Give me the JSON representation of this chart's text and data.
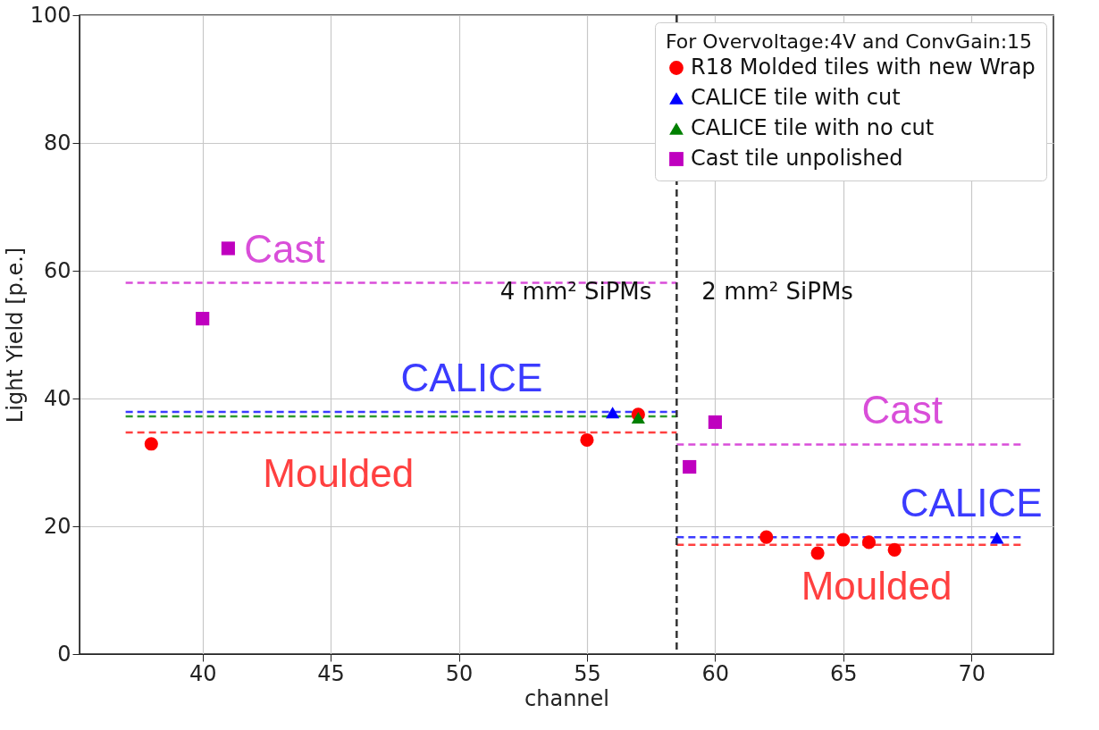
{
  "chart_data": {
    "type": "scatter",
    "xlabel": "channel",
    "ylabel": "Light Yield [p.e.]",
    "legend_title": "For Overvoltage:4V and ConvGain:15",
    "legend": "top right",
    "grid": true,
    "xlim": [
      35.2,
      73.2
    ],
    "ylim": [
      0,
      100
    ],
    "xticks": [
      40,
      45,
      50,
      55,
      60,
      65,
      70
    ],
    "yticks": [
      0,
      20,
      40,
      60,
      80,
      100
    ],
    "series": [
      {
        "name": "R18 Molded tiles with new Wrap",
        "marker": "circle",
        "color": "#ff0000",
        "x": [
          38,
          55,
          57,
          62,
          64,
          65,
          66,
          67
        ],
        "values": [
          32.9,
          33.5,
          37.5,
          18.3,
          15.8,
          17.9,
          17.5,
          16.3
        ]
      },
      {
        "name": "CALICE tile with cut",
        "marker": "triangle",
        "color": "#0000ff",
        "x": [
          56,
          71
        ],
        "values": [
          37.8,
          18.2
        ]
      },
      {
        "name": "CALICE tile with no cut",
        "marker": "triangle",
        "color": "#008000",
        "x": [
          57
        ],
        "values": [
          37.0
        ]
      },
      {
        "name": "Cast tile unpolished",
        "marker": "square",
        "color": "#bf00bf",
        "x": [
          40,
          41,
          59,
          60
        ],
        "values": [
          52.5,
          63.5,
          29.3,
          36.3
        ]
      },
      {
        "type": "line",
        "line_style": "dashed",
        "color": "#d94ed9",
        "x": [
          37,
          58.5
        ],
        "values": [
          58.1,
          58.1
        ]
      },
      {
        "type": "line",
        "line_style": "dashed",
        "color": "#3b3bff",
        "x": [
          37,
          58.5
        ],
        "values": [
          37.9,
          37.9
        ]
      },
      {
        "type": "line",
        "line_style": "dashed",
        "color": "#2e9a2e",
        "x": [
          37,
          58.5
        ],
        "values": [
          37.2,
          37.2
        ]
      },
      {
        "type": "line",
        "line_style": "dashed",
        "color": "#ff4040",
        "x": [
          37,
          58.5
        ],
        "values": [
          34.7,
          34.7
        ]
      },
      {
        "type": "line",
        "line_style": "dashed",
        "color": "#d94ed9",
        "x": [
          58.5,
          72
        ],
        "values": [
          32.8,
          32.8
        ]
      },
      {
        "type": "line",
        "line_style": "dashed",
        "color": "#3b3bff",
        "x": [
          58.5,
          72
        ],
        "values": [
          18.3,
          18.3
        ]
      },
      {
        "type": "line",
        "line_style": "dashed",
        "color": "#ff4040",
        "x": [
          58.5,
          72
        ],
        "values": [
          17.1,
          17.1
        ]
      }
    ],
    "ref_lines": [
      {
        "axis": "x",
        "value": 58.5,
        "color": "#333333",
        "line_style": "dashed"
      }
    ],
    "annotations": [
      {
        "text": "Cast",
        "x": 43.2,
        "y": 58.1
      },
      "4 mm² SiPMs",
      {
        "text": "CALICE",
        "x": 50.5,
        "y": 37.9
      },
      {
        "text": "Moulded",
        "x": 45.3,
        "y": 34.7
      },
      "2 mm² SiPMs",
      {
        "text": "Cast",
        "x": 67.3,
        "y": 32.8
      },
      {
        "text": "CALICE",
        "x": 70.0,
        "y": 18.3
      },
      {
        "text": "Moulded",
        "x": 66.3,
        "y": 17.1
      }
    ]
  }
}
